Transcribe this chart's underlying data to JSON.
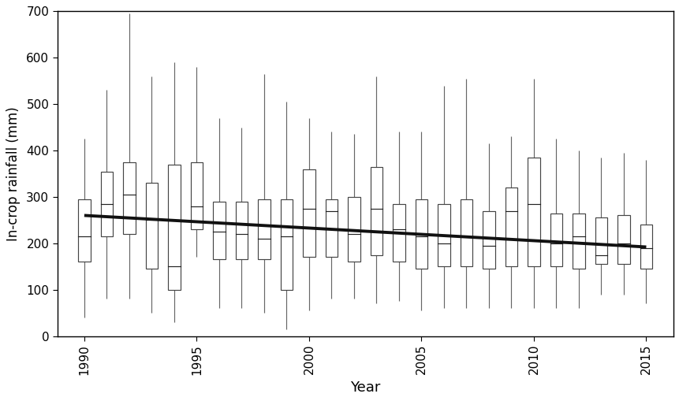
{
  "title": "",
  "xlabel": "Year",
  "ylabel": "In-crop rainfall (mm)",
  "ylim": [
    0,
    700
  ],
  "yticks": [
    0,
    100,
    200,
    300,
    400,
    500,
    600,
    700
  ],
  "xlim": [
    1988.8,
    2016.2
  ],
  "xticks": [
    1990,
    1995,
    2000,
    2005,
    2010,
    2015
  ],
  "box_width": 0.55,
  "background_color": "#ffffff",
  "box_color": "#ffffff",
  "box_edge_color": "#444444",
  "whisker_color": "#666666",
  "median_color": "#222222",
  "trend_color": "#111111",
  "trend_linewidth": 2.8,
  "years": [
    1990,
    1991,
    1992,
    1993,
    1994,
    1995,
    1996,
    1997,
    1998,
    1999,
    2000,
    2001,
    2002,
    2003,
    2004,
    2005,
    2006,
    2007,
    2008,
    2009,
    2010,
    2011,
    2012,
    2013,
    2014,
    2015
  ],
  "whisker_low": [
    40,
    80,
    80,
    50,
    30,
    170,
    60,
    60,
    50,
    15,
    55,
    80,
    80,
    70,
    75,
    55,
    60,
    60,
    60,
    60,
    60,
    60,
    60,
    90,
    90,
    70
  ],
  "q1": [
    160,
    215,
    220,
    145,
    100,
    230,
    165,
    165,
    165,
    100,
    170,
    170,
    160,
    175,
    160,
    145,
    150,
    150,
    145,
    150,
    150,
    150,
    145,
    155,
    155,
    145
  ],
  "median": [
    215,
    285,
    305,
    250,
    150,
    280,
    225,
    220,
    210,
    215,
    275,
    270,
    220,
    275,
    230,
    215,
    200,
    215,
    195,
    270,
    285,
    200,
    215,
    175,
    200,
    190
  ],
  "q3": [
    295,
    355,
    375,
    330,
    370,
    375,
    290,
    290,
    295,
    295,
    360,
    295,
    300,
    365,
    285,
    295,
    285,
    295,
    270,
    320,
    385,
    265,
    265,
    255,
    260,
    240
  ],
  "whisker_high": [
    425,
    530,
    695,
    560,
    590,
    580,
    470,
    450,
    565,
    505,
    470,
    440,
    435,
    560,
    440,
    440,
    540,
    555,
    415,
    430,
    555,
    425,
    400,
    385,
    395,
    380
  ],
  "trend_x": [
    1990,
    2015
  ],
  "trend_y": [
    260,
    192
  ]
}
